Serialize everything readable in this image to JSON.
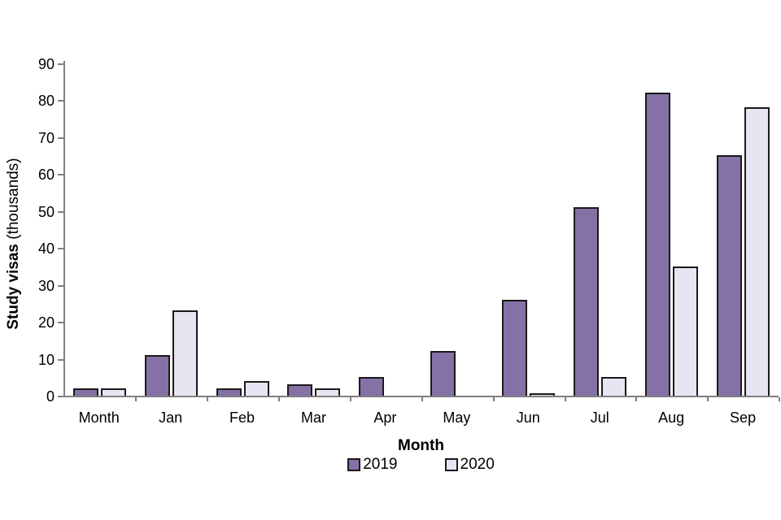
{
  "chart_data": {
    "type": "bar",
    "title": "",
    "categories": [
      "Month",
      "Jan",
      "Feb",
      "Mar",
      "Apr",
      "May",
      "Jun",
      "Jul",
      "Aug",
      "Sep"
    ],
    "series": [
      {
        "name": "2019",
        "color": "#8571a6",
        "values": [
          2,
          11,
          2,
          3,
          5,
          12,
          26,
          51,
          82,
          65
        ]
      },
      {
        "name": "2020",
        "color": "#e8e5f2",
        "values": [
          2,
          23,
          4,
          2,
          0,
          0,
          0.5,
          5,
          35,
          78
        ]
      }
    ],
    "xlabel": "Month",
    "ylabel": "Study visas (thousands)",
    "ylabel_bold": "Study visas",
    "ylabel_suffix": " (thousands)",
    "ylim": [
      0,
      90
    ],
    "ytick_step": 10,
    "ytick_labels": [
      "0",
      "10",
      "20",
      "30",
      "40",
      "50",
      "60",
      "70",
      "80",
      "90"
    ],
    "grid": false,
    "legend_position": "bottom-center",
    "bar_border_color": "#1a1a1a",
    "axis_color": "#7f7f7f",
    "background_color": "#ffffff"
  }
}
